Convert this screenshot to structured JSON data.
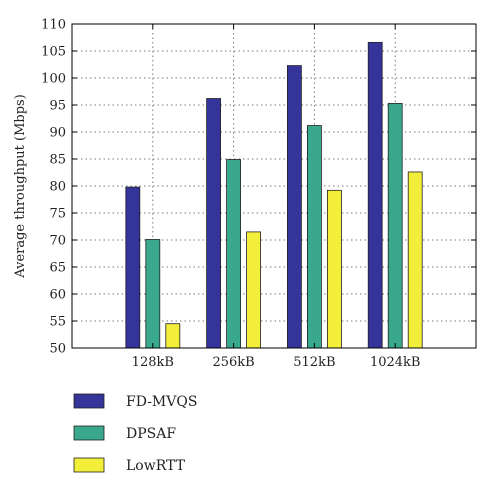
{
  "chart_data": {
    "type": "bar",
    "ylabel": "Average throughput (Mbps)",
    "xlabel": "",
    "categories": [
      "128kB",
      "256kB",
      "512kB",
      "1024kB"
    ],
    "ylim": [
      50,
      110
    ],
    "yticks": [
      50,
      55,
      60,
      65,
      70,
      75,
      80,
      85,
      90,
      95,
      100,
      105,
      110
    ],
    "grid": true,
    "legend_position": "below",
    "series": [
      {
        "name": "FD-MVQS",
        "color": "#34349a",
        "values": [
          79.8,
          96.2,
          102.3,
          106.6
        ]
      },
      {
        "name": "DPSAF",
        "color": "#3aa88c",
        "values": [
          70.1,
          84.9,
          91.2,
          95.3
        ]
      },
      {
        "name": "LowRTT",
        "color": "#f2ee3a",
        "values": [
          54.5,
          71.5,
          79.2,
          82.6
        ]
      }
    ]
  }
}
